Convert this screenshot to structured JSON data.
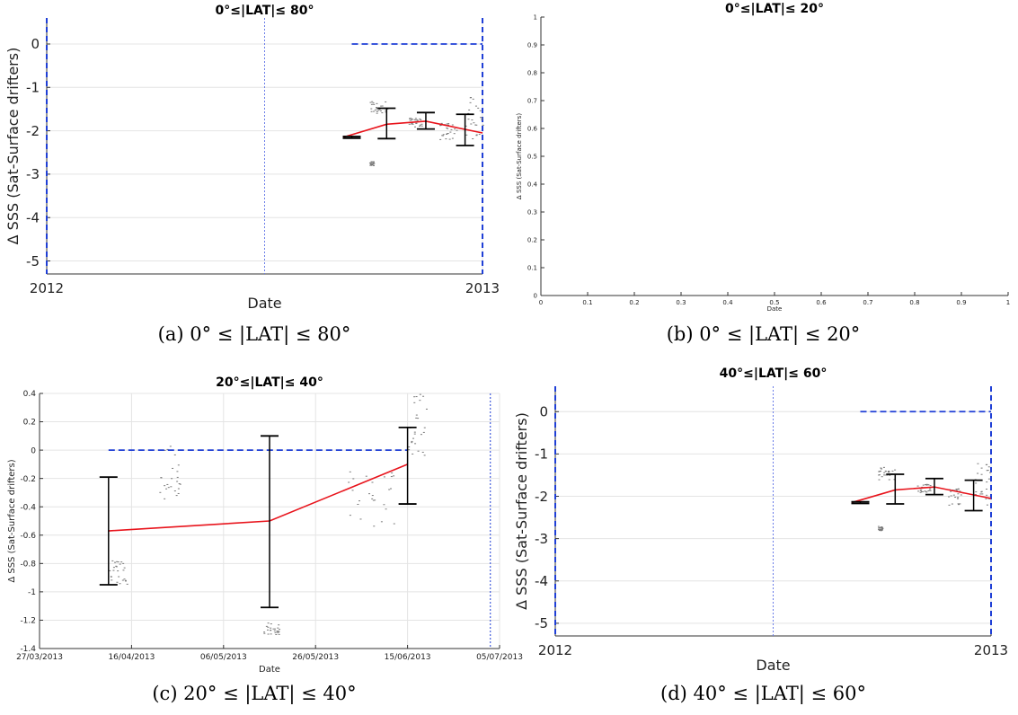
{
  "chart_data": [
    {
      "panel": "a",
      "type": "line",
      "title": "0°≤|LAT|≤ 80°",
      "caption": "(a) 0° ≤ |LAT| ≤ 80°",
      "xlabel": "Date",
      "ylabel": "Δ SSS (Sat-Surface drifters)",
      "xlim": [
        2012,
        2013
      ],
      "ylim": [
        -5.3,
        0.6
      ],
      "xticks": [
        {
          "v": 2012,
          "label": "2012"
        },
        {
          "v": 2013,
          "label": "2013"
        }
      ],
      "yticks": [
        {
          "v": 0,
          "label": "0"
        },
        {
          "v": -1,
          "label": "-1"
        },
        {
          "v": -2,
          "label": "-2"
        },
        {
          "v": -3,
          "label": "-3"
        },
        {
          "v": -4,
          "label": "-4"
        },
        {
          "v": -5,
          "label": "-5"
        }
      ],
      "grid": true,
      "series": [
        {
          "role": "mean",
          "color": "#e8141c",
          "x": [
            2012.68,
            2012.78,
            2012.87,
            2013.0
          ],
          "y": [
            -2.15,
            -1.85,
            -1.78,
            -2.05
          ]
        },
        {
          "role": "zero-reference",
          "color": "#1f3fd6",
          "style": "dashed",
          "x": [
            2012.7,
            2013.0
          ],
          "y": [
            0,
            0
          ]
        }
      ],
      "errorbars": [
        {
          "x": 2012.7,
          "low": -2.17,
          "high": -2.13
        },
        {
          "x": 2012.78,
          "low": -2.18,
          "high": -1.48
        },
        {
          "x": 2012.87,
          "low": -1.96,
          "high": -1.58
        },
        {
          "x": 2012.96,
          "low": -2.34,
          "high": -1.62
        }
      ],
      "vlines": [
        {
          "x": 2012.0,
          "color": "#1f3fd6",
          "style": "dashed"
        },
        {
          "x": 2012.5,
          "color": "#6a7de8",
          "style": "dotted"
        },
        {
          "x": 2013.0,
          "color": "#1f3fd6",
          "style": "dashed"
        }
      ],
      "scatter_clusters": [
        {
          "x": [
            2012.74,
            2012.78
          ],
          "y": [
            -1.6,
            -1.3
          ]
        },
        {
          "x": [
            2012.83,
            2012.86
          ],
          "y": [
            -1.9,
            -1.7
          ]
        },
        {
          "x": [
            2012.9,
            2012.94
          ],
          "y": [
            -2.2,
            -1.8
          ]
        },
        {
          "x": [
            2012.96,
            2013.0
          ],
          "y": [
            -2.2,
            -1.2
          ]
        },
        {
          "x": [
            2012.74,
            2012.75
          ],
          "y": [
            -2.8,
            -2.7
          ]
        }
      ]
    },
    {
      "panel": "b",
      "type": "line",
      "title": "0°≤|LAT|≤ 20°",
      "caption": "(b) 0° ≤ |LAT| ≤ 20°",
      "xlabel": "Date",
      "ylabel": "Δ SSS (Sat-Surface drifters)",
      "xlim": [
        0,
        1
      ],
      "ylim": [
        0,
        1
      ],
      "xticks": [
        {
          "v": 0,
          "label": "0"
        },
        {
          "v": 0.1,
          "label": "0.1"
        },
        {
          "v": 0.2,
          "label": "0.2"
        },
        {
          "v": 0.3,
          "label": "0.3"
        },
        {
          "v": 0.4,
          "label": "0.4"
        },
        {
          "v": 0.5,
          "label": "0.5"
        },
        {
          "v": 0.6,
          "label": "0.6"
        },
        {
          "v": 0.7,
          "label": "0.7"
        },
        {
          "v": 0.8,
          "label": "0.8"
        },
        {
          "v": 0.9,
          "label": "0.9"
        },
        {
          "v": 1,
          "label": "1"
        }
      ],
      "yticks": [
        {
          "v": 0,
          "label": "0"
        },
        {
          "v": 0.1,
          "label": "0.1"
        },
        {
          "v": 0.2,
          "label": "0.2"
        },
        {
          "v": 0.3,
          "label": "0.3"
        },
        {
          "v": 0.4,
          "label": "0.4"
        },
        {
          "v": 0.5,
          "label": "0.5"
        },
        {
          "v": 0.6,
          "label": "0.6"
        },
        {
          "v": 0.7,
          "label": "0.7"
        },
        {
          "v": 0.8,
          "label": "0.8"
        },
        {
          "v": 0.9,
          "label": "0.9"
        },
        {
          "v": 1,
          "label": "1"
        }
      ],
      "grid": false,
      "series": [],
      "errorbars": [],
      "vlines": [],
      "scatter_clusters": []
    },
    {
      "panel": "c",
      "type": "line",
      "title": "20°≤|LAT|≤ 40°",
      "caption": "(c) 20° ≤ |LAT| ≤ 40°",
      "xlabel": "Date",
      "ylabel": "Δ SSS (Sat-Surface drifters)",
      "xlim": [
        "2013-03-27",
        "2013-07-05"
      ],
      "ylim": [
        -1.4,
        0.4
      ],
      "xticks": [
        {
          "v": "2013-03-27",
          "label": "27/03/2013"
        },
        {
          "v": "2013-04-16",
          "label": "16/04/2013"
        },
        {
          "v": "2013-05-06",
          "label": "06/05/2013"
        },
        {
          "v": "2013-05-26",
          "label": "26/05/2013"
        },
        {
          "v": "2013-06-15",
          "label": "15/06/2013"
        },
        {
          "v": "2013-07-05",
          "label": "05/07/2013"
        }
      ],
      "yticks": [
        {
          "v": 0.4,
          "label": "0.4"
        },
        {
          "v": 0.2,
          "label": "0.2"
        },
        {
          "v": 0,
          "label": "0"
        },
        {
          "v": -0.2,
          "label": "-0.2"
        },
        {
          "v": -0.4,
          "label": "-0.4"
        },
        {
          "v": -0.6,
          "label": "-0.6"
        },
        {
          "v": -0.8,
          "label": "-0.8"
        },
        {
          "v": -1,
          "label": "-1"
        },
        {
          "v": -1.2,
          "label": "-1.2"
        },
        {
          "v": -1.4,
          "label": "-1.4"
        }
      ],
      "grid": true,
      "series": [
        {
          "role": "mean",
          "color": "#e8141c",
          "x": [
            "2013-04-11",
            "2013-05-16",
            "2013-06-15"
          ],
          "y": [
            -0.57,
            -0.5,
            -0.1
          ]
        },
        {
          "role": "zero-reference",
          "color": "#1f3fd6",
          "style": "dashed",
          "x": [
            "2013-04-11",
            "2013-06-15"
          ],
          "y": [
            0,
            0
          ]
        }
      ],
      "errorbars": [
        {
          "x": "2013-04-11",
          "low": -0.95,
          "high": -0.19
        },
        {
          "x": "2013-05-16",
          "low": -1.11,
          "high": 0.1
        },
        {
          "x": "2013-06-15",
          "low": -0.38,
          "high": 0.16
        }
      ],
      "vlines": [
        {
          "x": "2013-07-03",
          "color": "#1f3fd6",
          "style": "dotted"
        }
      ],
      "scatter_clusters": [
        {
          "x": [
            "2013-04-11",
            "2013-04-15"
          ],
          "y": [
            -0.95,
            -0.77
          ]
        },
        {
          "x": [
            "2013-04-22",
            "2013-04-27"
          ],
          "y": [
            -0.35,
            0.05
          ]
        },
        {
          "x": [
            "2013-05-14",
            "2013-05-18"
          ],
          "y": [
            -1.3,
            -1.2
          ]
        },
        {
          "x": [
            "2013-06-02",
            "2013-06-12"
          ],
          "y": [
            -0.55,
            -0.15
          ]
        },
        {
          "x": [
            "2013-06-15",
            "2013-06-19"
          ],
          "y": [
            -0.05,
            0.4
          ]
        }
      ]
    },
    {
      "panel": "d",
      "type": "line",
      "title": "40°≤|LAT|≤ 60°",
      "caption": "(d) 40° ≤ |LAT| ≤ 60°",
      "xlabel": "Date",
      "ylabel": "Δ SSS (Sat-Surface drifters)",
      "xlim": [
        2012,
        2013
      ],
      "ylim": [
        -5.3,
        0.6
      ],
      "xticks": [
        {
          "v": 2012,
          "label": "2012"
        },
        {
          "v": 2013,
          "label": "2013"
        }
      ],
      "yticks": [
        {
          "v": 0,
          "label": "0"
        },
        {
          "v": -1,
          "label": "-1"
        },
        {
          "v": -2,
          "label": "-2"
        },
        {
          "v": -3,
          "label": "-3"
        },
        {
          "v": -4,
          "label": "-4"
        },
        {
          "v": -5,
          "label": "-5"
        }
      ],
      "grid": true,
      "series": [
        {
          "role": "mean",
          "color": "#e8141c",
          "x": [
            2012.68,
            2012.78,
            2012.87,
            2013.0
          ],
          "y": [
            -2.15,
            -1.85,
            -1.78,
            -2.05
          ]
        },
        {
          "role": "zero-reference",
          "color": "#1f3fd6",
          "style": "dashed",
          "x": [
            2012.7,
            2013.0
          ],
          "y": [
            0,
            0
          ]
        }
      ],
      "errorbars": [
        {
          "x": 2012.7,
          "low": -2.17,
          "high": -2.13
        },
        {
          "x": 2012.78,
          "low": -2.18,
          "high": -1.48
        },
        {
          "x": 2012.87,
          "low": -1.96,
          "high": -1.58
        },
        {
          "x": 2012.96,
          "low": -2.34,
          "high": -1.62
        }
      ],
      "vlines": [
        {
          "x": 2012.0,
          "color": "#1f3fd6",
          "style": "dashed"
        },
        {
          "x": 2012.5,
          "color": "#6a7de8",
          "style": "dotted"
        },
        {
          "x": 2013.0,
          "color": "#1f3fd6",
          "style": "dashed"
        }
      ],
      "scatter_clusters": [
        {
          "x": [
            2012.74,
            2012.78
          ],
          "y": [
            -1.6,
            -1.3
          ]
        },
        {
          "x": [
            2012.83,
            2012.86
          ],
          "y": [
            -1.9,
            -1.7
          ]
        },
        {
          "x": [
            2012.9,
            2012.94
          ],
          "y": [
            -2.2,
            -1.8
          ]
        },
        {
          "x": [
            2012.96,
            2013.0
          ],
          "y": [
            -2.2,
            -1.2
          ]
        },
        {
          "x": [
            2012.74,
            2012.75
          ],
          "y": [
            -2.8,
            -2.7
          ]
        }
      ]
    }
  ]
}
